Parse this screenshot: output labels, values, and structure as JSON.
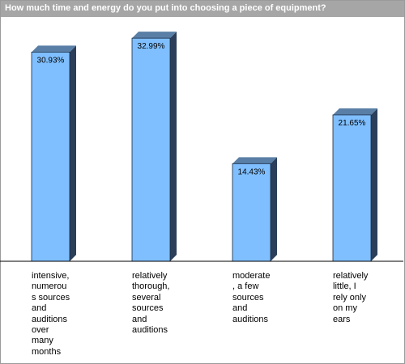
{
  "chart_data": {
    "type": "bar",
    "title": "How much time and energy do you put into choosing a piece of equipment?",
    "categories": [
      "intensive,\nnumerou\ns sources\nand\nauditions\nover\nmany\nmonths",
      "relatively\nthorough,\nseveral\nsources\nand\nauditions",
      "moderate\n, a few\nsources\nand\nauditions",
      "relatively\nlittle, I\nrely only\non my\nears"
    ],
    "values": [
      30.93,
      32.99,
      14.43,
      21.65
    ],
    "value_labels": [
      "30.93%",
      "32.99%",
      "14.43%",
      "21.65%"
    ],
    "ylim": [
      0,
      36
    ],
    "grid": false,
    "legend": "none",
    "colors": {
      "bar_front": "#7fbfff",
      "bar_side": "#2b3f5a",
      "bar_top": "#5a7fa6",
      "title_bg": "#a6a6a6",
      "title_text": "#ffffff"
    }
  }
}
